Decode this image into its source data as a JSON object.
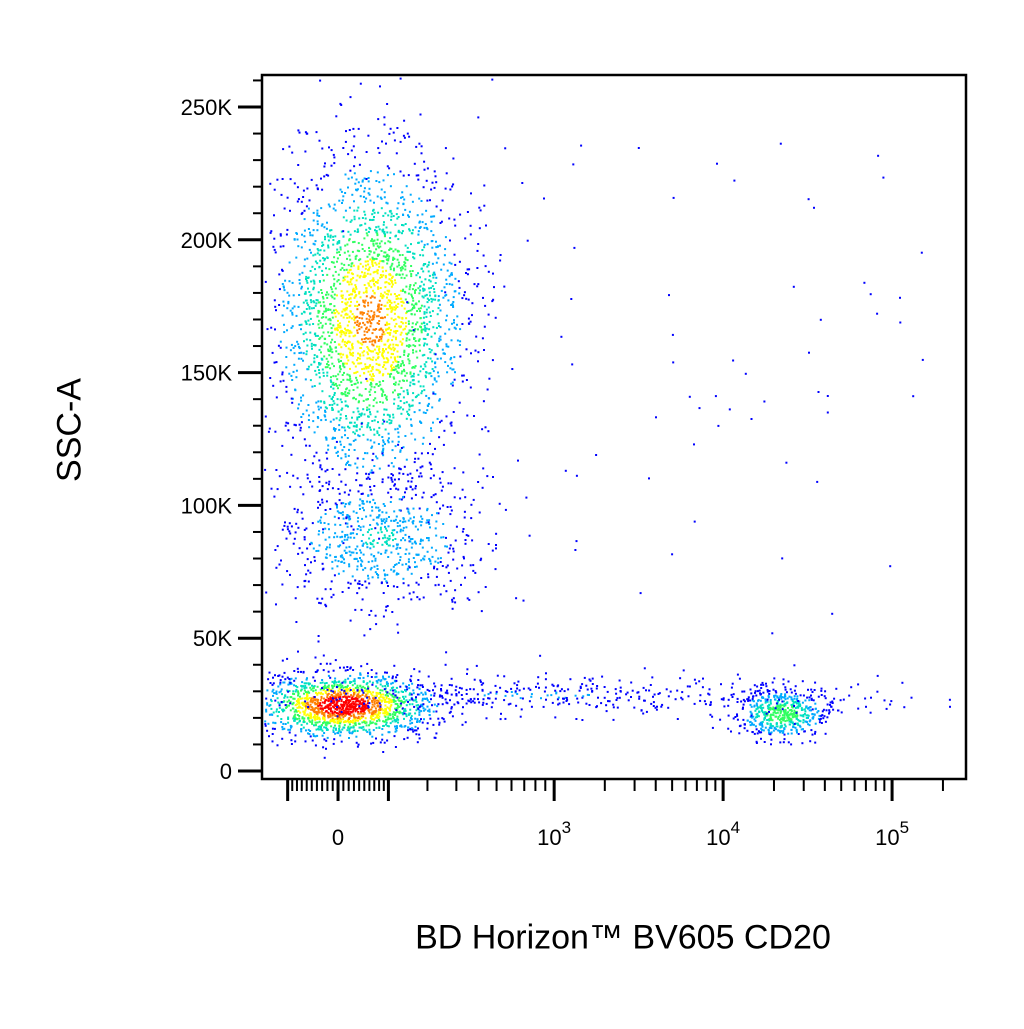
{
  "chart_data": {
    "type": "scatter",
    "subtype": "flow-cytometry-density-dot-plot",
    "xlabel": "BD Horizon™ BV605 CD20",
    "ylabel": "SSC-A",
    "x_scale": "biexponential",
    "x_ticks": [
      {
        "value": 0,
        "label": "0",
        "exp": ""
      },
      {
        "value": 1000,
        "label": "10",
        "exp": "3"
      },
      {
        "value": 10000,
        "label": "10",
        "exp": "4"
      },
      {
        "value": 100000,
        "label": "10",
        "exp": "5"
      }
    ],
    "y_ticks": [
      {
        "value": 0,
        "label": "0"
      },
      {
        "value": 50000,
        "label": "50K"
      },
      {
        "value": 100000,
        "label": "100K"
      },
      {
        "value": 150000,
        "label": "150K"
      },
      {
        "value": 200000,
        "label": "200K"
      },
      {
        "value": 250000,
        "label": "250K"
      }
    ],
    "ylim": [
      0,
      262144
    ],
    "grid": false,
    "colormap": [
      "#0000ff",
      "#00aaff",
      "#00e0c0",
      "#30ff60",
      "#ffff00",
      "#ff8000",
      "#ff0000"
    ],
    "populations": [
      {
        "x_center": 10,
        "x_sd": 90,
        "y_center": 25000,
        "y_sd": 6000,
        "peak_density": 1.0
      },
      {
        "x_center": 60,
        "x_sd": 110,
        "y_center": 170000,
        "y_sd": 30000,
        "peak_density": 0.75
      },
      {
        "x_center": 80,
        "x_sd": 140,
        "y_center": 88000,
        "y_sd": 13000,
        "peak_density": 0.3
      },
      {
        "x_center": 22000,
        "x_sd": 8000,
        "y_center": 22000,
        "y_sd": 4500,
        "peak_density": 0.55
      },
      {
        "x_center": 800,
        "x_sd": 1500,
        "y_center": 29000,
        "y_sd": 4000,
        "peak_density": 0.15
      }
    ]
  }
}
